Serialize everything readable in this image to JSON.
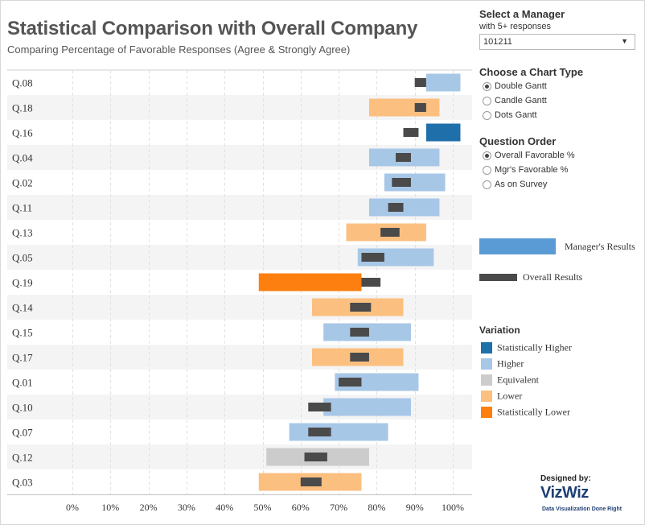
{
  "header": {
    "title": "Statistical Comparison with Overall Company",
    "subtitle": "Comparing Percentage of Favorable Responses (Agree & Strongly Agree)"
  },
  "controls": {
    "manager": {
      "heading": "Select a Manager",
      "subheading": "with 5+ responses",
      "selected": "101211"
    },
    "chart_type": {
      "heading": "Choose a Chart Type",
      "options": [
        "Double Gantt",
        "Candle Gantt",
        "Dots Gantt"
      ],
      "selected_index": 0
    },
    "question_order": {
      "heading": "Question Order",
      "options": [
        "Overall Favorable %",
        "Mgr's Favorable %",
        "As on Survey"
      ],
      "selected_index": 0
    }
  },
  "legend": {
    "managers_results": "Manager's Results",
    "overall_results": "Overall Results",
    "managers_color": "#5b9bd5",
    "overall_color": "#4a4a4a"
  },
  "variation": {
    "heading": "Variation",
    "items": [
      {
        "label": "Statistically Higher",
        "color": "#1f6fab"
      },
      {
        "label": "Higher",
        "color": "#a7c7e7"
      },
      {
        "label": "Equivalent",
        "color": "#cccccc"
      },
      {
        "label": "Lower",
        "color": "#fbbf7f"
      },
      {
        "label": "Statistically Lower",
        "color": "#fc7f0f"
      }
    ]
  },
  "chart_data": {
    "type": "bar",
    "subtype": "gantt",
    "xlim": [
      0,
      105
    ],
    "x_ticks": [
      0,
      10,
      20,
      30,
      40,
      50,
      60,
      70,
      80,
      90,
      100
    ],
    "x_tick_labels": [
      "0%",
      "10%",
      "20%",
      "30%",
      "40%",
      "50%",
      "60%",
      "70%",
      "80%",
      "90%",
      "100%"
    ],
    "grid": "vertical dashed",
    "rows": [
      {
        "question": "Q.08",
        "mgr_start": 93,
        "mgr_end": 102,
        "overall_start": 90,
        "overall_end": 93,
        "variation": "Higher"
      },
      {
        "question": "Q.18",
        "mgr_start": 78,
        "mgr_end": 96.5,
        "overall_start": 90,
        "overall_end": 93,
        "variation": "Lower"
      },
      {
        "question": "Q.16",
        "mgr_start": 93,
        "mgr_end": 102,
        "overall_start": 87,
        "overall_end": 91,
        "variation": "Statistically Higher"
      },
      {
        "question": "Q.04",
        "mgr_start": 78,
        "mgr_end": 96.5,
        "overall_start": 85,
        "overall_end": 89,
        "variation": "Higher"
      },
      {
        "question": "Q.02",
        "mgr_start": 82,
        "mgr_end": 98,
        "overall_start": 84,
        "overall_end": 89,
        "variation": "Higher"
      },
      {
        "question": "Q.11",
        "mgr_start": 78,
        "mgr_end": 96.5,
        "overall_start": 83,
        "overall_end": 87,
        "variation": "Higher"
      },
      {
        "question": "Q.13",
        "mgr_start": 72,
        "mgr_end": 93,
        "overall_start": 81,
        "overall_end": 86,
        "variation": "Lower"
      },
      {
        "question": "Q.05",
        "mgr_start": 75,
        "mgr_end": 95,
        "overall_start": 76,
        "overall_end": 82,
        "variation": "Higher"
      },
      {
        "question": "Q.19",
        "mgr_start": 49,
        "mgr_end": 76,
        "overall_start": 76,
        "overall_end": 81,
        "variation": "Statistically Lower"
      },
      {
        "question": "Q.14",
        "mgr_start": 63,
        "mgr_end": 87,
        "overall_start": 73,
        "overall_end": 78.5,
        "variation": "Lower"
      },
      {
        "question": "Q.15",
        "mgr_start": 66,
        "mgr_end": 89,
        "overall_start": 73,
        "overall_end": 78,
        "variation": "Higher"
      },
      {
        "question": "Q.17",
        "mgr_start": 63,
        "mgr_end": 87,
        "overall_start": 73,
        "overall_end": 78,
        "variation": "Lower"
      },
      {
        "question": "Q.01",
        "mgr_start": 69,
        "mgr_end": 91,
        "overall_start": 70,
        "overall_end": 76,
        "variation": "Higher"
      },
      {
        "question": "Q.10",
        "mgr_start": 66,
        "mgr_end": 89,
        "overall_start": 62,
        "overall_end": 68,
        "variation": "Higher"
      },
      {
        "question": "Q.07",
        "mgr_start": 57,
        "mgr_end": 83,
        "overall_start": 62,
        "overall_end": 68,
        "variation": "Higher"
      },
      {
        "question": "Q.12",
        "mgr_start": 51,
        "mgr_end": 78,
        "overall_start": 61,
        "overall_end": 67,
        "variation": "Equivalent"
      },
      {
        "question": "Q.03",
        "mgr_start": 49,
        "mgr_end": 76,
        "overall_start": 60,
        "overall_end": 65.5,
        "variation": "Lower"
      }
    ]
  },
  "branding": {
    "designed_by": "Designed by:",
    "name": "VizWiz",
    "tagline": "Data Visualization Done Right"
  }
}
